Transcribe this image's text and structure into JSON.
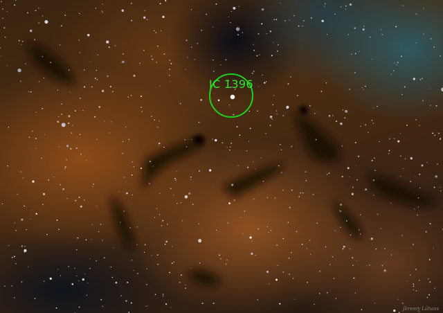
{
  "annotation": {
    "label": "IC 1396",
    "marker_color": "#1fd11f"
  },
  "credit": "Jeremy Lahass"
}
